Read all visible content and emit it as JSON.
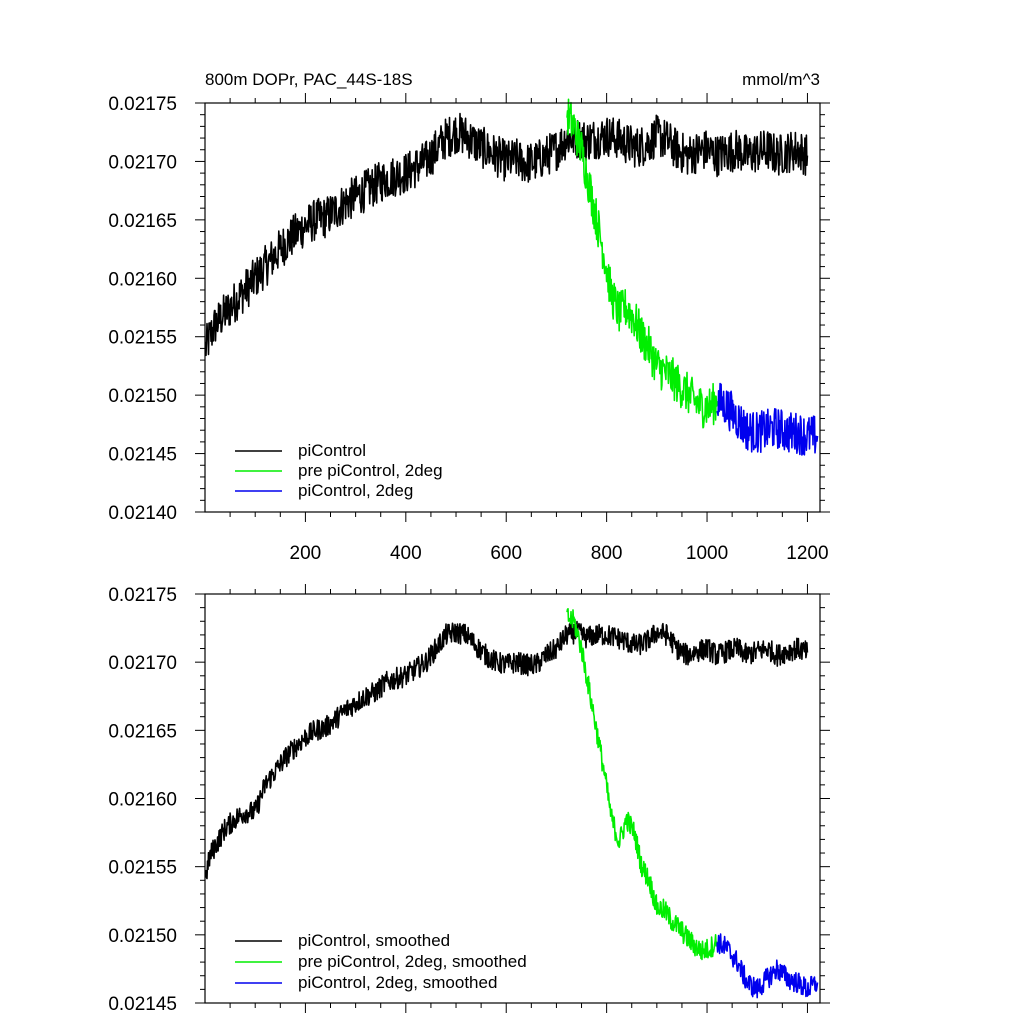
{
  "chart_data": [
    {
      "type": "line",
      "panel": "top",
      "title": "800m DOPr, PAC_44S-18S",
      "units": "mmol/m^3",
      "xlim": [
        0,
        1225
      ],
      "ylim": [
        0.0214,
        0.02175
      ],
      "xticks": [
        200,
        400,
        600,
        800,
        1000,
        1200
      ],
      "xtick_labels": [
        "200",
        "400",
        "600",
        "800",
        "1000",
        "1200"
      ],
      "yticks": [
        0.0214,
        0.02145,
        0.0215,
        0.02155,
        0.0216,
        0.02165,
        0.0217,
        0.02175
      ],
      "ytick_labels": [
        "0.02140",
        "0.02145",
        "0.02150",
        "0.02155",
        "0.02160",
        "0.02165",
        "0.02170",
        "0.02175"
      ],
      "legend_position": "bottom-left",
      "series": [
        {
          "name": "piControl",
          "color": "#000000",
          "noise": 1.8e-05,
          "x": [
            1,
            10,
            20,
            40,
            60,
            80,
            100,
            120,
            140,
            160,
            180,
            200,
            220,
            240,
            260,
            280,
            300,
            320,
            340,
            360,
            380,
            400,
            420,
            440,
            460,
            480,
            500,
            520,
            540,
            560,
            580,
            600,
            620,
            640,
            660,
            680,
            700,
            720,
            740,
            760,
            780,
            800,
            820,
            840,
            860,
            880,
            900,
            920,
            940,
            960,
            980,
            1000,
            1020,
            1040,
            1060,
            1080,
            1100,
            1120,
            1140,
            1160,
            1180,
            1200
          ],
          "values": [
            0.02154,
            0.02155,
            0.02156,
            0.02157,
            0.02158,
            0.02159,
            0.0216,
            0.02161,
            0.02162,
            0.02163,
            0.021638,
            0.021645,
            0.02165,
            0.021652,
            0.021658,
            0.021665,
            0.02167,
            0.021675,
            0.02168,
            0.021685,
            0.021688,
            0.02169,
            0.021695,
            0.0217,
            0.02171,
            0.02172,
            0.021725,
            0.021722,
            0.021715,
            0.02171,
            0.021705,
            0.0217,
            0.021702,
            0.021698,
            0.0217,
            0.021705,
            0.02171,
            0.02172,
            0.02172,
            0.021718,
            0.02172,
            0.021722,
            0.02172,
            0.021715,
            0.021712,
            0.021715,
            0.021722,
            0.021718,
            0.02171,
            0.021705,
            0.021708,
            0.02171,
            0.021705,
            0.021708,
            0.02171,
            0.021705,
            0.021708,
            0.02171,
            0.021705,
            0.021708,
            0.02171,
            0.021705
          ]
        },
        {
          "name": "pre piControl, 2deg",
          "color": "#00ee00",
          "noise": 1.8e-05,
          "x": [
            721,
            735,
            750,
            765,
            780,
            795,
            810,
            825,
            840,
            855,
            870,
            885,
            900,
            915,
            930,
            945,
            960,
            975,
            990,
            1005,
            1020
          ],
          "values": [
            0.02174,
            0.02173,
            0.02171,
            0.02168,
            0.02165,
            0.02162,
            0.021585,
            0.02157,
            0.021575,
            0.021565,
            0.02155,
            0.02154,
            0.021525,
            0.02152,
            0.021515,
            0.021508,
            0.021502,
            0.021495,
            0.02149,
            0.02149,
            0.021495
          ]
        },
        {
          "name": "piControl, 2deg",
          "color": "#0000ee",
          "noise": 1.8e-05,
          "x": [
            1020,
            1040,
            1060,
            1080,
            1100,
            1120,
            1140,
            1160,
            1180,
            1200,
            1220
          ],
          "values": [
            0.021495,
            0.02149,
            0.02148,
            0.02147,
            0.021468,
            0.02147,
            0.021472,
            0.021468,
            0.021468,
            0.021465,
            0.021465
          ]
        }
      ]
    },
    {
      "type": "line",
      "panel": "bottom",
      "title": "",
      "units": "",
      "xlim": [
        0,
        1225
      ],
      "ylim": [
        0.02145,
        0.02175
      ],
      "xticks": [
        200,
        400,
        600,
        800,
        1000,
        1200
      ],
      "xtick_labels": [],
      "yticks": [
        0.02145,
        0.0215,
        0.02155,
        0.0216,
        0.02165,
        0.0217,
        0.02175
      ],
      "ytick_labels": [
        "0.02145",
        "0.02150",
        "0.02155",
        "0.02160",
        "0.02165",
        "0.02170",
        "0.02175"
      ],
      "legend_position": "bottom-left",
      "series": [
        {
          "name": "piControl, smoothed",
          "color": "#000000",
          "noise": 8e-06,
          "x": [
            1,
            10,
            20,
            40,
            60,
            80,
            100,
            120,
            140,
            160,
            180,
            200,
            220,
            240,
            260,
            280,
            300,
            320,
            340,
            360,
            380,
            400,
            420,
            440,
            460,
            480,
            500,
            520,
            540,
            560,
            580,
            600,
            620,
            640,
            660,
            680,
            700,
            720,
            740,
            760,
            780,
            800,
            820,
            840,
            860,
            880,
            900,
            920,
            940,
            960,
            980,
            1000,
            1020,
            1040,
            1060,
            1080,
            1100,
            1120,
            1140,
            1160,
            1180,
            1200
          ],
          "values": [
            0.021542,
            0.021558,
            0.021565,
            0.021578,
            0.021585,
            0.02159,
            0.02159,
            0.02161,
            0.02162,
            0.02163,
            0.021638,
            0.021645,
            0.02165,
            0.021652,
            0.021658,
            0.021665,
            0.02167,
            0.021675,
            0.021678,
            0.021685,
            0.021688,
            0.02169,
            0.021695,
            0.0217,
            0.02171,
            0.02172,
            0.021722,
            0.02172,
            0.021712,
            0.021705,
            0.0217,
            0.021698,
            0.0217,
            0.021698,
            0.021698,
            0.021705,
            0.02171,
            0.02172,
            0.021722,
            0.021718,
            0.02172,
            0.02172,
            0.021718,
            0.021715,
            0.021712,
            0.021715,
            0.021722,
            0.02172,
            0.02171,
            0.021705,
            0.021708,
            0.02171,
            0.021705,
            0.021708,
            0.02171,
            0.021705,
            0.021708,
            0.02171,
            0.021705,
            0.021708,
            0.02171,
            0.021707
          ]
        },
        {
          "name": "pre piControl, 2deg, smoothed",
          "color": "#00ee00",
          "noise": 8e-06,
          "x": [
            721,
            735,
            750,
            765,
            780,
            795,
            810,
            825,
            840,
            855,
            870,
            885,
            900,
            915,
            930,
            945,
            960,
            975,
            990,
            1005,
            1020
          ],
          "values": [
            0.021733,
            0.02173,
            0.02171,
            0.02168,
            0.02165,
            0.02162,
            0.021585,
            0.021568,
            0.021585,
            0.021575,
            0.02155,
            0.02154,
            0.02152,
            0.021518,
            0.02151,
            0.021505,
            0.021498,
            0.021492,
            0.021488,
            0.02149,
            0.021495
          ]
        },
        {
          "name": "piControl, 2deg, smoothed",
          "color": "#0000ee",
          "noise": 8e-06,
          "x": [
            1020,
            1040,
            1060,
            1080,
            1100,
            1120,
            1140,
            1160,
            1180,
            1200,
            1220
          ],
          "values": [
            0.021495,
            0.02149,
            0.02148,
            0.021465,
            0.02146,
            0.021468,
            0.021475,
            0.021468,
            0.021465,
            0.02146,
            0.021465
          ]
        }
      ]
    }
  ]
}
